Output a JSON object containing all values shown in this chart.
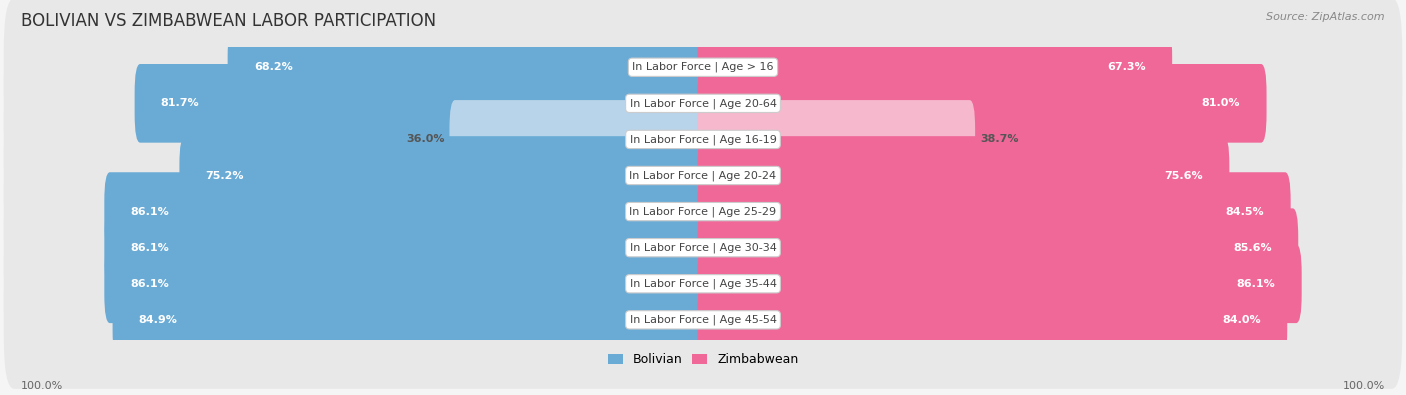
{
  "title": "BOLIVIAN VS ZIMBABWEAN LABOR PARTICIPATION",
  "source": "Source: ZipAtlas.com",
  "categories": [
    "In Labor Force | Age > 16",
    "In Labor Force | Age 20-64",
    "In Labor Force | Age 16-19",
    "In Labor Force | Age 20-24",
    "In Labor Force | Age 25-29",
    "In Labor Force | Age 30-34",
    "In Labor Force | Age 35-44",
    "In Labor Force | Age 45-54"
  ],
  "bolivian": [
    68.2,
    81.7,
    36.0,
    75.2,
    86.1,
    86.1,
    86.1,
    84.9
  ],
  "zimbabwean": [
    67.3,
    81.0,
    38.7,
    75.6,
    84.5,
    85.6,
    86.1,
    84.0
  ],
  "bolivian_color_full": "#6aabd6",
  "bolivian_color_light": "#b8d4ea",
  "zimbabwean_color_full": "#f06898",
  "zimbabwean_color_light": "#f5b8cc",
  "row_bg_color": "#e8e8e8",
  "fig_bg_color": "#f5f5f5",
  "label_box_color": "#ffffff",
  "label_text_color": "#444444",
  "title_color": "#333333",
  "source_color": "#888888",
  "axis_label_color": "#666666",
  "threshold": 60.0,
  "max_val": 100.0,
  "bar_height": 0.58,
  "row_padding": 0.12,
  "title_fontsize": 12,
  "source_fontsize": 8,
  "value_fontsize": 8,
  "cat_fontsize": 8,
  "axis_fontsize": 8
}
